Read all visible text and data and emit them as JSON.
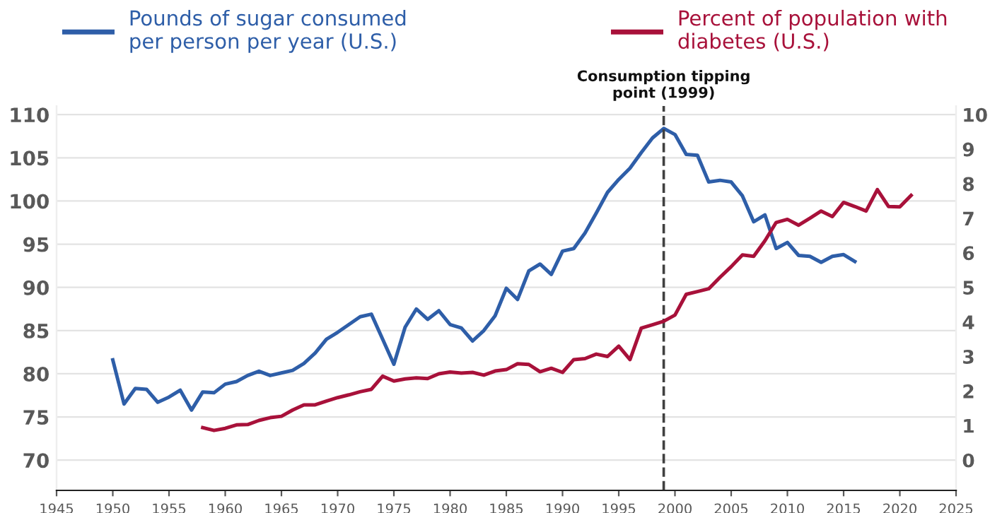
{
  "chart_data": {
    "type": "line",
    "x": [
      1950,
      1951,
      1952,
      1953,
      1954,
      1955,
      1956,
      1957,
      1958,
      1959,
      1960,
      1961,
      1962,
      1963,
      1964,
      1965,
      1966,
      1967,
      1968,
      1969,
      1970,
      1971,
      1972,
      1973,
      1974,
      1975,
      1976,
      1977,
      1978,
      1979,
      1980,
      1981,
      1982,
      1983,
      1984,
      1985,
      1986,
      1987,
      1988,
      1989,
      1990,
      1991,
      1992,
      1993,
      1994,
      1995,
      1996,
      1997,
      1998,
      1999,
      2000,
      2001,
      2002,
      2003,
      2004,
      2005,
      2006,
      2007,
      2008,
      2009,
      2010,
      2011,
      2012,
      2013,
      2014,
      2015,
      2016,
      2017,
      2018,
      2019,
      2020,
      2021
    ],
    "series": [
      {
        "name": "Pounds of sugar consumed\nper person per year (U.S.)",
        "color": "#2e5ea8",
        "values": [
          81.6,
          76.5,
          78.3,
          78.2,
          76.7,
          77.3,
          78.1,
          75.8,
          77.9,
          77.8,
          78.8,
          79.1,
          79.8,
          80.3,
          79.8,
          80.1,
          80.4,
          81.2,
          82.4,
          84.0,
          84.8,
          85.7,
          86.6,
          86.9,
          84.0,
          81.1,
          85.4,
          87.5,
          86.3,
          87.3,
          85.7,
          85.3,
          83.8,
          85.0,
          86.7,
          89.9,
          88.6,
          91.9,
          92.7,
          91.5,
          94.2,
          94.5,
          96.3,
          98.6,
          101.0,
          102.5,
          103.8,
          105.6,
          107.3,
          108.4,
          107.7,
          105.4,
          105.3,
          102.2,
          102.4,
          102.2,
          100.6,
          97.6,
          98.4,
          94.5,
          95.2,
          93.7,
          93.6,
          92.9,
          93.6,
          93.8,
          93.0,
          null,
          null,
          null,
          null,
          null
        ]
      },
      {
        "name": "Percent of population with\ndiabetes (U.S.)",
        "color": "#a8113a",
        "axis": "y2",
        "values": [
          null,
          null,
          null,
          null,
          null,
          null,
          null,
          null,
          0.94,
          0.86,
          0.92,
          1.02,
          1.03,
          1.15,
          1.23,
          1.27,
          1.45,
          1.6,
          1.6,
          1.71,
          1.81,
          1.89,
          1.98,
          2.05,
          2.43,
          2.29,
          2.35,
          2.38,
          2.36,
          2.5,
          2.55,
          2.52,
          2.54,
          2.46,
          2.58,
          2.62,
          2.79,
          2.77,
          2.56,
          2.66,
          2.54,
          2.91,
          2.94,
          3.07,
          3.0,
          3.3,
          2.91,
          3.82,
          3.92,
          4.02,
          4.2,
          4.8,
          4.88,
          4.96,
          5.29,
          5.6,
          5.94,
          5.9,
          6.35,
          6.88,
          6.97,
          6.8,
          7.0,
          7.21,
          7.05,
          7.46,
          7.34,
          7.21,
          7.83,
          7.34,
          7.33,
          7.66
        ]
      }
    ],
    "xlim": [
      1945,
      2025
    ],
    "xticks": [
      1945,
      1950,
      1955,
      1960,
      1965,
      1970,
      1975,
      1980,
      1985,
      1990,
      1995,
      2000,
      2005,
      2010,
      2015,
      2020,
      2025
    ],
    "ylim": [
      66.5,
      111
    ],
    "yticks": [
      70,
      75,
      80,
      85,
      90,
      95,
      100,
      105,
      110
    ],
    "y2lim": [
      -0.875,
      10.25
    ],
    "y2ticks": [
      0,
      1,
      2,
      3,
      4,
      5,
      6,
      7,
      8,
      9,
      10
    ],
    "ref_lines": [
      {
        "axis": "x",
        "value": 1999,
        "label": "Consumption tipping\npoint (1999)",
        "color": "#404040",
        "line_style": "dashed"
      }
    ],
    "grid": "y",
    "legend": "top",
    "marker": "none",
    "line_style": "solid"
  }
}
